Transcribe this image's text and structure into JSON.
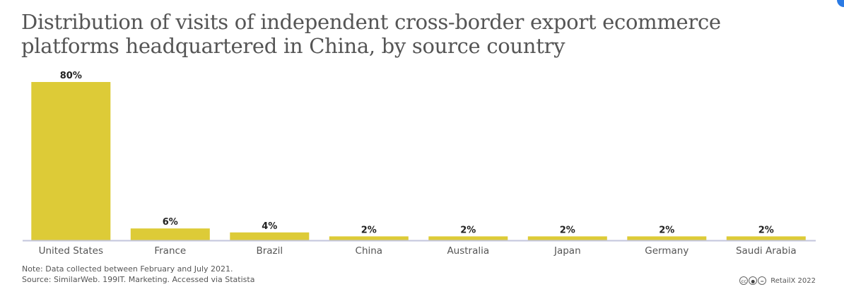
{
  "chart_data": {
    "type": "bar",
    "title": "Distribution of visits of independent cross-border export ecommerce platforms headquartered in China, by source country",
    "categories": [
      "United States",
      "France",
      "Brazil",
      "China",
      "Australia",
      "Japan",
      "Germany",
      "Saudi Arabia"
    ],
    "values": [
      80,
      6,
      4,
      2,
      2,
      2,
      2,
      2
    ],
    "value_suffix": "%",
    "xlabel": "",
    "ylabel": "",
    "ylim": [
      0,
      80
    ],
    "grid": false,
    "colors": {
      "bar": "#ddcb37",
      "axis": "#c3c6dc"
    }
  },
  "footer": {
    "note": "Note: Data collected between February and July 2021.",
    "source": "Source: SimilarWeb. 199IT. Marketing. Accessed via Statista",
    "credit": "RetailX 2022",
    "license_icons": [
      "cc-icon",
      "attribution-icon",
      "no-derivatives-icon"
    ]
  }
}
